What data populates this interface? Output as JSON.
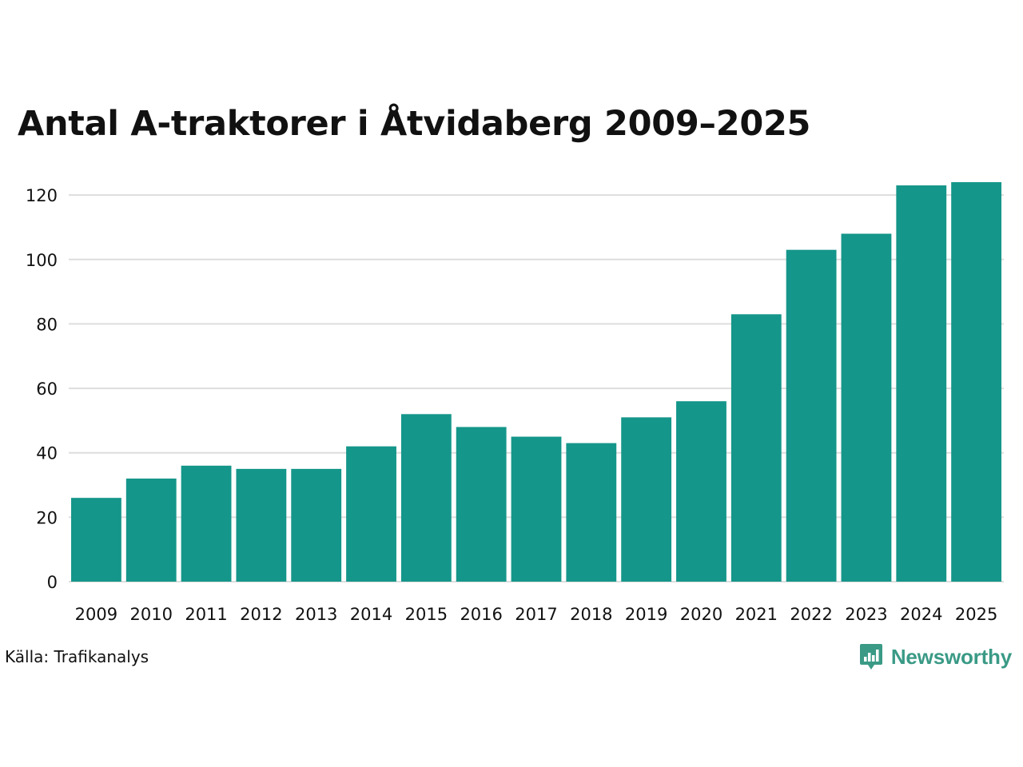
{
  "title": "Antal A-traktorer i Åtvidaberg 2009–2025",
  "source": "Källa: Trafikanalys",
  "brand": {
    "name": "Newsworthy",
    "icon": "newsworthy-logo-icon",
    "color": "#3a9a86"
  },
  "colors": {
    "bar": "#15968a",
    "grid": "#dddddd",
    "text": "#111111"
  },
  "chart_data": {
    "type": "bar",
    "title": "Antal A-traktorer i Åtvidaberg 2009–2025",
    "categories": [
      "2009",
      "2010",
      "2011",
      "2012",
      "2013",
      "2014",
      "2015",
      "2016",
      "2017",
      "2018",
      "2019",
      "2020",
      "2021",
      "2022",
      "2023",
      "2024",
      "2025"
    ],
    "values": [
      26,
      32,
      36,
      35,
      35,
      42,
      52,
      48,
      45,
      43,
      51,
      56,
      83,
      103,
      108,
      123,
      124
    ],
    "yticks": [
      0,
      20,
      40,
      60,
      80,
      100,
      120
    ],
    "ylim": [
      0,
      124
    ],
    "xlabel": "",
    "ylabel": "",
    "grid": true,
    "legend": "none"
  }
}
